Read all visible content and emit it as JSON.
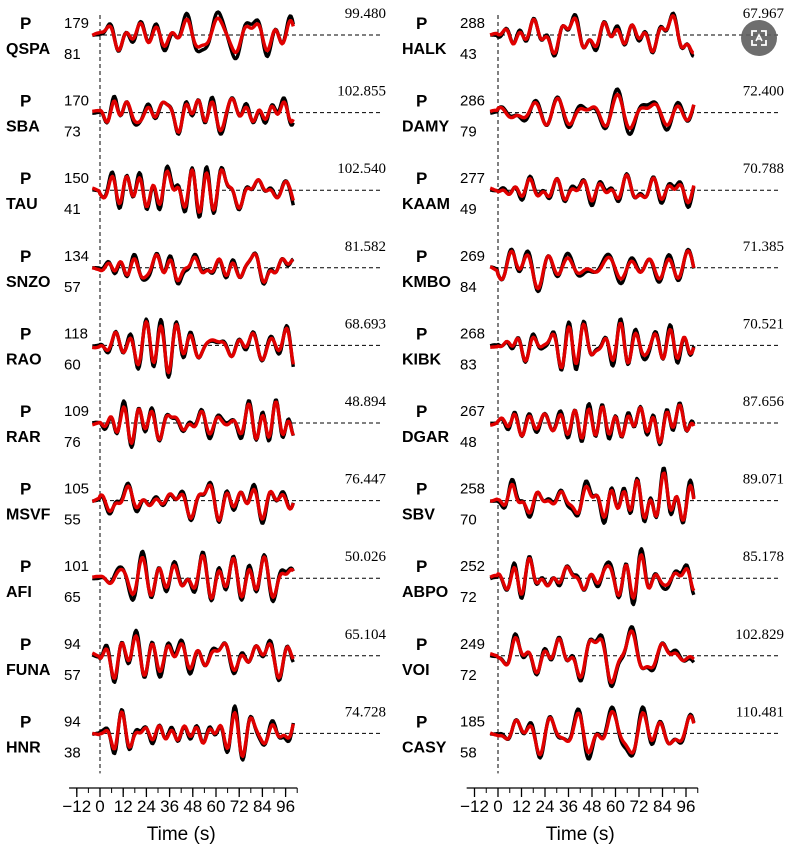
{
  "chart_data": {
    "type": "line",
    "x_label": "Time (s)",
    "x_ticks": [
      -12,
      0,
      12,
      24,
      36,
      48,
      60,
      72,
      84,
      96
    ],
    "xlim": [
      -16,
      102
    ],
    "phase_label": "P",
    "series_colors": {
      "observed": "#000000",
      "synthetic": "#e00000"
    },
    "columns": [
      [
        {
          "station": "QSPA",
          "azimuth": "179",
          "distance": "81",
          "amplitude": "99.480"
        },
        {
          "station": "SBA",
          "azimuth": "170",
          "distance": "73",
          "amplitude": "102.855"
        },
        {
          "station": "TAU",
          "azimuth": "150",
          "distance": "41",
          "amplitude": "102.540"
        },
        {
          "station": "SNZO",
          "azimuth": "134",
          "distance": "57",
          "amplitude": "81.582"
        },
        {
          "station": "RAO",
          "azimuth": "118",
          "distance": "60",
          "amplitude": "68.693"
        },
        {
          "station": "RAR",
          "azimuth": "109",
          "distance": "76",
          "amplitude": "48.894"
        },
        {
          "station": "MSVF",
          "azimuth": "105",
          "distance": "55",
          "amplitude": "76.447"
        },
        {
          "station": "AFI",
          "azimuth": "101",
          "distance": "65",
          "amplitude": "50.026"
        },
        {
          "station": "FUNA",
          "azimuth": "94",
          "distance": "57",
          "amplitude": "65.104"
        },
        {
          "station": "HNR",
          "azimuth": "94",
          "distance": "38",
          "amplitude": "74.728"
        }
      ],
      [
        {
          "station": "HALK",
          "azimuth": "288",
          "distance": "43",
          "amplitude": "67.967"
        },
        {
          "station": "DAMY",
          "azimuth": "286",
          "distance": "79",
          "amplitude": "72.400"
        },
        {
          "station": "KAAM",
          "azimuth": "277",
          "distance": "49",
          "amplitude": "70.788"
        },
        {
          "station": "KMBO",
          "azimuth": "269",
          "distance": "84",
          "amplitude": "71.385"
        },
        {
          "station": "KIBK",
          "azimuth": "268",
          "distance": "83",
          "amplitude": "70.521"
        },
        {
          "station": "DGAR",
          "azimuth": "267",
          "distance": "48",
          "amplitude": "87.656"
        },
        {
          "station": "SBV",
          "azimuth": "258",
          "distance": "70",
          "amplitude": "89.071"
        },
        {
          "station": "ABPO",
          "azimuth": "252",
          "distance": "72",
          "amplitude": "85.178"
        },
        {
          "station": "VOI",
          "azimuth": "249",
          "distance": "72",
          "amplitude": "102.829"
        },
        {
          "station": "CASY",
          "azimuth": "185",
          "distance": "58",
          "amplitude": "110.481"
        }
      ]
    ]
  },
  "zoom_icon": "zoom-expand-icon"
}
